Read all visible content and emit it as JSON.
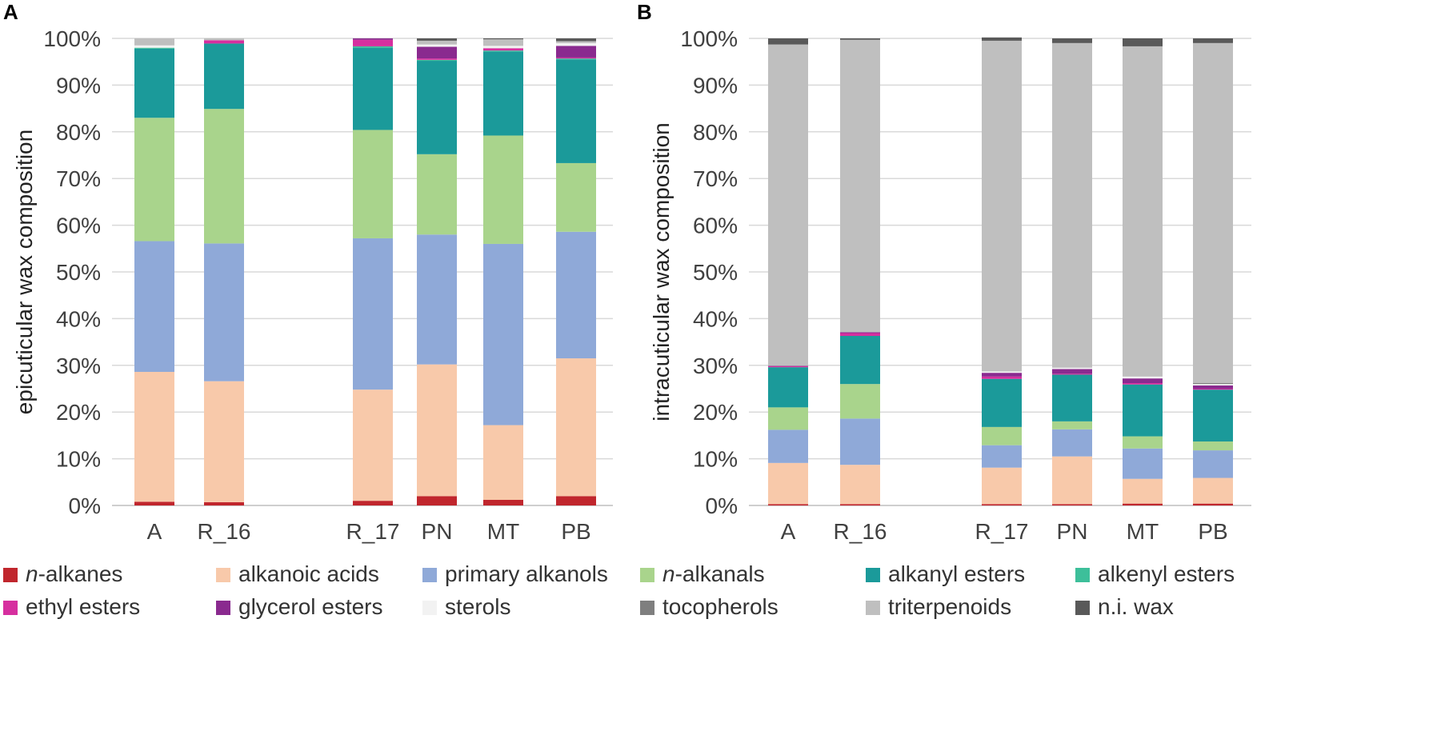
{
  "figure": {
    "legend": [
      {
        "key": "n_alkanes",
        "prefix": "n",
        "label": "-alkanes",
        "color": "#c0262d"
      },
      {
        "key": "alkanoic_acids",
        "prefix": "",
        "label": "alkanoic acids",
        "color": "#f8c9aa"
      },
      {
        "key": "primary_alkanols",
        "prefix": "",
        "label": "primary alkanols",
        "color": "#8fa9d8"
      },
      {
        "key": "n_alkanals",
        "prefix": "n",
        "label": "-alkanals",
        "color": "#a9d48c"
      },
      {
        "key": "alkanyl_esters",
        "prefix": "",
        "label": "alkanyl esters",
        "color": "#1b9a9a"
      },
      {
        "key": "alkenyl_esters",
        "prefix": "",
        "label": "alkenyl esters",
        "color": "#3dbf9a"
      },
      {
        "key": "ethyl_esters",
        "prefix": "",
        "label": "ethyl esters",
        "color": "#d62f9f"
      },
      {
        "key": "glycerol_esters",
        "prefix": "",
        "label": "glycerol esters",
        "color": "#8a2a8f"
      },
      {
        "key": "sterols",
        "prefix": "",
        "label": "sterols",
        "color": "#f2f2f2"
      },
      {
        "key": "tocopherols",
        "prefix": "",
        "label": "tocopherols",
        "color": "#7f7f7f"
      },
      {
        "key": "triterpenoids",
        "prefix": "",
        "label": "triterpenoids",
        "color": "#bfbfbf"
      },
      {
        "key": "ni_wax",
        "prefix": "",
        "label": "n.i. wax",
        "color": "#595959"
      }
    ]
  },
  "chart_data": [
    {
      "type": "bar",
      "stacked": true,
      "panel": "A",
      "ylabel": "epicuticular wax composition",
      "ylim": [
        0,
        100
      ],
      "yticks": [
        "0%",
        "10%",
        "20%",
        "30%",
        "40%",
        "50%",
        "60%",
        "70%",
        "80%",
        "90%",
        "100%"
      ],
      "categories": [
        "A",
        "R_16",
        "R_17",
        "PN",
        "MT",
        "PB"
      ],
      "series": [
        {
          "key": "n_alkanes",
          "name": "n-alkanes",
          "values": [
            0.8,
            0.7,
            1.0,
            2.0,
            1.2,
            2.0
          ]
        },
        {
          "key": "alkanoic_acids",
          "name": "alkanoic acids",
          "values": [
            27.8,
            25.9,
            23.8,
            28.2,
            16.0,
            29.5
          ]
        },
        {
          "key": "primary_alkanols",
          "name": "primary alkanols",
          "values": [
            28.0,
            29.5,
            32.4,
            27.8,
            38.8,
            27.1
          ]
        },
        {
          "key": "n_alkanals",
          "name": "n-alkanals",
          "values": [
            26.4,
            28.8,
            23.2,
            17.2,
            23.2,
            14.7
          ]
        },
        {
          "key": "alkanyl_esters",
          "name": "alkanyl esters",
          "values": [
            14.8,
            14.0,
            17.6,
            20.0,
            18.0,
            22.2
          ]
        },
        {
          "key": "alkenyl_esters",
          "name": "alkenyl esters",
          "values": [
            0.2,
            0.0,
            0.3,
            0.2,
            0.2,
            0.2
          ]
        },
        {
          "key": "ethyl_esters",
          "name": "ethyl esters",
          "values": [
            0.0,
            0.7,
            1.4,
            0.3,
            0.5,
            0.2
          ]
        },
        {
          "key": "glycerol_esters",
          "name": "glycerol esters",
          "values": [
            0.0,
            0.0,
            0.3,
            2.5,
            0.0,
            2.5
          ]
        },
        {
          "key": "sterols",
          "name": "sterols",
          "values": [
            0.5,
            0.0,
            0.0,
            0.5,
            0.5,
            0.6
          ]
        },
        {
          "key": "tocopherols",
          "name": "tocopherols",
          "values": [
            0.0,
            0.0,
            0.0,
            0.0,
            0.0,
            0.0
          ]
        },
        {
          "key": "triterpenoids",
          "name": "triterpenoids",
          "values": [
            1.5,
            0.4,
            0.0,
            0.8,
            1.4,
            0.4
          ]
        },
        {
          "key": "ni_wax",
          "name": "n.i. wax",
          "values": [
            0.0,
            0.0,
            0.0,
            0.5,
            0.2,
            0.6
          ]
        }
      ]
    },
    {
      "type": "bar",
      "stacked": true,
      "panel": "B",
      "ylabel": "intracuticular wax composition",
      "ylim": [
        0,
        100
      ],
      "yticks": [
        "0%",
        "10%",
        "20%",
        "30%",
        "40%",
        "50%",
        "60%",
        "70%",
        "80%",
        "90%",
        "100%"
      ],
      "categories": [
        "A",
        "R_16",
        "R_17",
        "PN",
        "MT",
        "PB"
      ],
      "series": [
        {
          "key": "n_alkanes",
          "name": "n-alkanes",
          "values": [
            0.3,
            0.3,
            0.3,
            0.3,
            0.4,
            0.4
          ]
        },
        {
          "key": "alkanoic_acids",
          "name": "alkanoic acids",
          "values": [
            8.8,
            8.4,
            7.8,
            10.2,
            5.3,
            5.5
          ]
        },
        {
          "key": "primary_alkanols",
          "name": "primary alkanols",
          "values": [
            7.1,
            9.9,
            4.8,
            5.8,
            6.5,
            5.9
          ]
        },
        {
          "key": "n_alkanals",
          "name": "n-alkanals",
          "values": [
            4.8,
            7.4,
            3.9,
            1.7,
            2.6,
            1.9
          ]
        },
        {
          "key": "alkanyl_esters",
          "name": "alkanyl esters",
          "values": [
            8.6,
            10.3,
            10.3,
            10.0,
            11.1,
            11.1
          ]
        },
        {
          "key": "alkenyl_esters",
          "name": "alkenyl esters",
          "values": [
            0.0,
            0.0,
            0.0,
            0.0,
            0.0,
            0.0
          ]
        },
        {
          "key": "ethyl_esters",
          "name": "ethyl esters",
          "values": [
            0.2,
            0.6,
            0.5,
            0.2,
            0.3,
            0.2
          ]
        },
        {
          "key": "glycerol_esters",
          "name": "glycerol esters",
          "values": [
            0.1,
            0.2,
            0.8,
            1.0,
            1.0,
            0.7
          ]
        },
        {
          "key": "sterols",
          "name": "sterols",
          "values": [
            0.0,
            0.0,
            0.3,
            0.3,
            0.4,
            0.3
          ]
        },
        {
          "key": "tocopherols",
          "name": "tocopherols",
          "values": [
            0.0,
            0.0,
            0.0,
            0.0,
            0.0,
            0.2
          ]
        },
        {
          "key": "triterpenoids",
          "name": "triterpenoids",
          "values": [
            68.8,
            62.6,
            70.8,
            69.5,
            70.7,
            72.8
          ]
        },
        {
          "key": "ni_wax",
          "name": "n.i. wax",
          "values": [
            1.3,
            0.3,
            0.7,
            1.0,
            1.7,
            1.0
          ]
        }
      ]
    }
  ]
}
